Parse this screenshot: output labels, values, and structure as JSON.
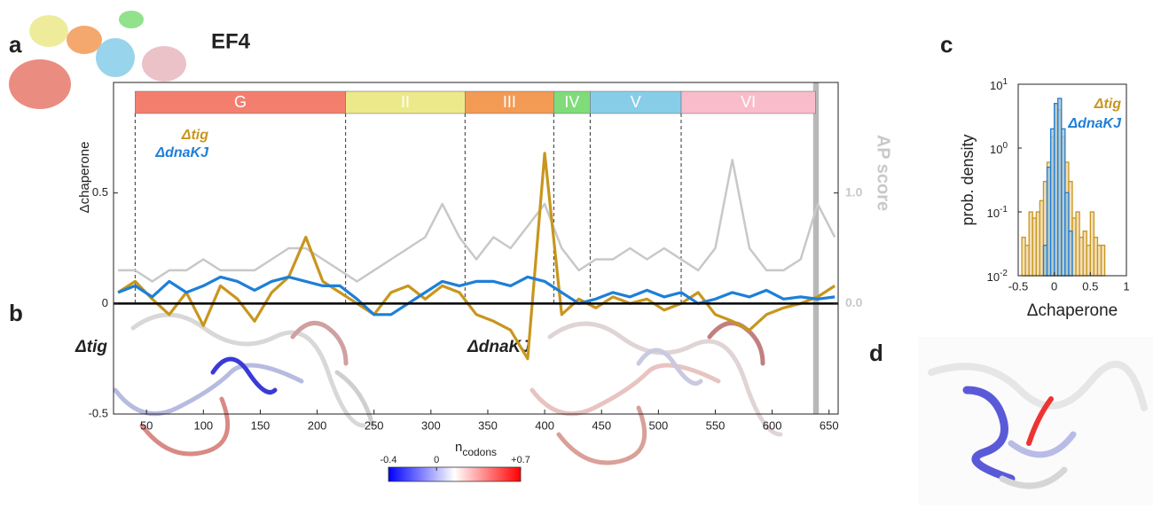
{
  "figure": {
    "panel_labels": [
      "a",
      "b",
      "c",
      "d"
    ],
    "protein": "EF4",
    "structure_labels": [
      "Δtig",
      "ΔdnaKJ"
    ],
    "colorbar": {
      "lim": [
        -0.4,
        0.7
      ],
      "ticks": [
        -0.4,
        0,
        {
          "value": 0.7,
          "label": "+0.7"
        }
      ]
    }
  },
  "chart_data": [
    {
      "type": "line",
      "ylabel": "Δchaperone",
      "xlabel": {
        "text": "n",
        "subscript": "codons"
      },
      "y2label": "AP score",
      "xlim": [
        21,
        658
      ],
      "ylim": [
        -0.5,
        1.0
      ],
      "y2lim": [
        -1.0,
        2.0
      ],
      "xticks": [
        50,
        100,
        150,
        200,
        250,
        300,
        350,
        400,
        450,
        500,
        550,
        600,
        650
      ],
      "yticks": [
        -0.5,
        0,
        0.5
      ],
      "y2ticks": [
        {
          "value": 0,
          "label": "0.0"
        },
        {
          "value": 1,
          "label": "1.0"
        }
      ],
      "domains": [
        {
          "name": "G",
          "start": 40,
          "end": 225,
          "color": "#f47e6e"
        },
        {
          "name": "II",
          "start": 225,
          "end": 330,
          "color": "#ece98a"
        },
        {
          "name": "III",
          "start": 330,
          "end": 408,
          "color": "#f39a55"
        },
        {
          "name": "IV",
          "start": 408,
          "end": 440,
          "color": "#7fdc79"
        },
        {
          "name": "V",
          "start": 440,
          "end": 520,
          "color": "#87cde8"
        },
        {
          "name": "VI",
          "start": 520,
          "end": 638,
          "color": "#f9bccb"
        }
      ],
      "shaded_region": [
        636,
        641
      ],
      "x": [
        25,
        40,
        55,
        70,
        85,
        100,
        115,
        130,
        145,
        160,
        175,
        190,
        205,
        220,
        235,
        250,
        265,
        280,
        295,
        310,
        325,
        340,
        355,
        370,
        385,
        400,
        415,
        430,
        445,
        460,
        475,
        490,
        505,
        520,
        535,
        550,
        565,
        580,
        595,
        610,
        625,
        640,
        655
      ],
      "series": [
        {
          "name": "AP score",
          "color": "#c8c8c8",
          "axis": "y2",
          "values": [
            0.3,
            0.3,
            0.2,
            0.3,
            0.3,
            0.4,
            0.3,
            0.3,
            0.3,
            0.4,
            0.5,
            0.5,
            0.4,
            0.3,
            0.2,
            0.3,
            0.4,
            0.5,
            0.6,
            0.9,
            0.6,
            0.4,
            0.6,
            0.5,
            0.7,
            0.9,
            0.5,
            0.3,
            0.4,
            0.4,
            0.5,
            0.4,
            0.5,
            0.4,
            0.3,
            0.5,
            1.3,
            0.5,
            0.3,
            0.3,
            0.4,
            0.9,
            0.6
          ]
        },
        {
          "name": "Δtig",
          "color": "#c8961e",
          "values": [
            0.05,
            0.1,
            0.02,
            -0.05,
            0.05,
            -0.1,
            0.08,
            0.02,
            -0.08,
            0.05,
            0.12,
            0.3,
            0.1,
            0.05,
            0.0,
            -0.05,
            0.05,
            0.08,
            0.02,
            0.08,
            0.05,
            -0.05,
            -0.08,
            -0.12,
            -0.25,
            0.68,
            -0.05,
            0.02,
            -0.02,
            0.03,
            0.0,
            0.02,
            -0.03,
            0.0,
            0.05,
            -0.05,
            -0.08,
            -0.12,
            -0.05,
            -0.02,
            0.0,
            0.03,
            0.08
          ]
        },
        {
          "name": "ΔdnaKJ",
          "color": "#1e7fd8",
          "values": [
            0.05,
            0.08,
            0.03,
            0.1,
            0.05,
            0.08,
            0.12,
            0.1,
            0.06,
            0.1,
            0.12,
            0.1,
            0.08,
            0.08,
            0.02,
            -0.05,
            -0.05,
            0.0,
            0.05,
            0.1,
            0.08,
            0.1,
            0.1,
            0.08,
            0.12,
            0.1,
            0.05,
            0.0,
            0.02,
            0.05,
            0.03,
            0.06,
            0.03,
            0.05,
            0.0,
            0.02,
            0.05,
            0.03,
            0.06,
            0.02,
            0.03,
            0.02,
            0.03
          ]
        }
      ]
    },
    {
      "type": "histogram",
      "xlabel": "Δchaperone",
      "ylabel": "prob. density",
      "log_y": true,
      "xlim": [
        -0.5,
        1
      ],
      "xticks": [
        -0.5,
        0,
        0.5,
        1
      ],
      "ylim": [
        0.01,
        10
      ],
      "yticks": [
        {
          "value": 0.01,
          "label": "10",
          "exponent": "-2"
        },
        {
          "value": 0.1,
          "label": "10",
          "exponent": "-1"
        },
        {
          "value": 1,
          "label": "10",
          "exponent": "0"
        },
        {
          "value": 10,
          "label": "10",
          "exponent": "1"
        }
      ],
      "series": [
        {
          "name": "Δtig",
          "color": "#c8961e",
          "fill": "#f0d7a8",
          "bins": [
            -0.45,
            -0.4,
            -0.35,
            -0.3,
            -0.25,
            -0.2,
            -0.15,
            -0.1,
            -0.05,
            0,
            0.05,
            0.1,
            0.15,
            0.2,
            0.25,
            0.3,
            0.35,
            0.4,
            0.45,
            0.5,
            0.55,
            0.6,
            0.65,
            0.7
          ],
          "values": [
            0.04,
            0.03,
            0.1,
            0.08,
            0.1,
            0.15,
            0.3,
            0.6,
            1.5,
            5,
            4,
            1.5,
            0.6,
            0.3,
            0.08,
            0.1,
            0.04,
            0.05,
            0.03,
            0.1,
            0.04,
            0.03,
            0.03
          ]
        },
        {
          "name": "ΔdnaKJ",
          "color": "#1e7fd8",
          "fill": "#a9c3cc",
          "bins": [
            -0.15,
            -0.1,
            -0.05,
            0,
            0.05,
            0.1,
            0.15,
            0.2,
            0.25
          ],
          "values": [
            0.03,
            0.5,
            2,
            5,
            6,
            2,
            0.2,
            0.05
          ]
        }
      ]
    }
  ]
}
